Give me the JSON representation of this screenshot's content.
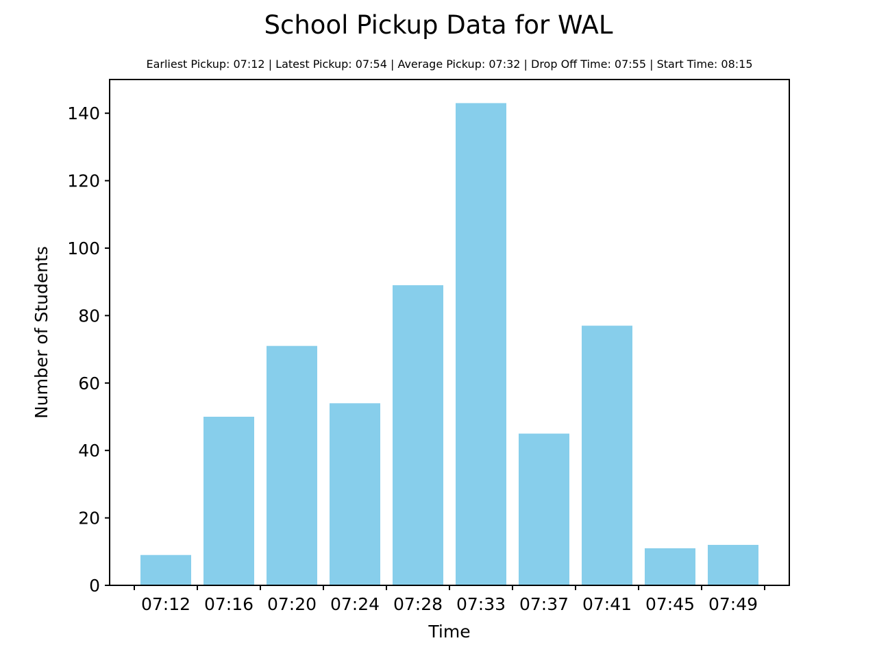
{
  "chart_data": {
    "type": "bar",
    "title": "School Pickup Data for WAL",
    "subtitle": "Earliest Pickup: 07:12 | Latest Pickup: 07:54 | Average Pickup: 07:32 | Drop Off Time: 07:55 | Start Time: 08:15",
    "xlabel": "Time",
    "ylabel": "Number of Students",
    "categories": [
      "07:12",
      "07:16",
      "07:20",
      "07:24",
      "07:28",
      "07:33",
      "07:37",
      "07:41",
      "07:45",
      "07:49"
    ],
    "values": [
      9,
      50,
      71,
      54,
      89,
      143,
      45,
      77,
      11,
      12
    ],
    "ylim": [
      0,
      150
    ],
    "yticks": [
      0,
      20,
      40,
      60,
      80,
      100,
      120,
      140
    ],
    "bar_color": "#87ceeb",
    "grid": false,
    "legend": false
  }
}
